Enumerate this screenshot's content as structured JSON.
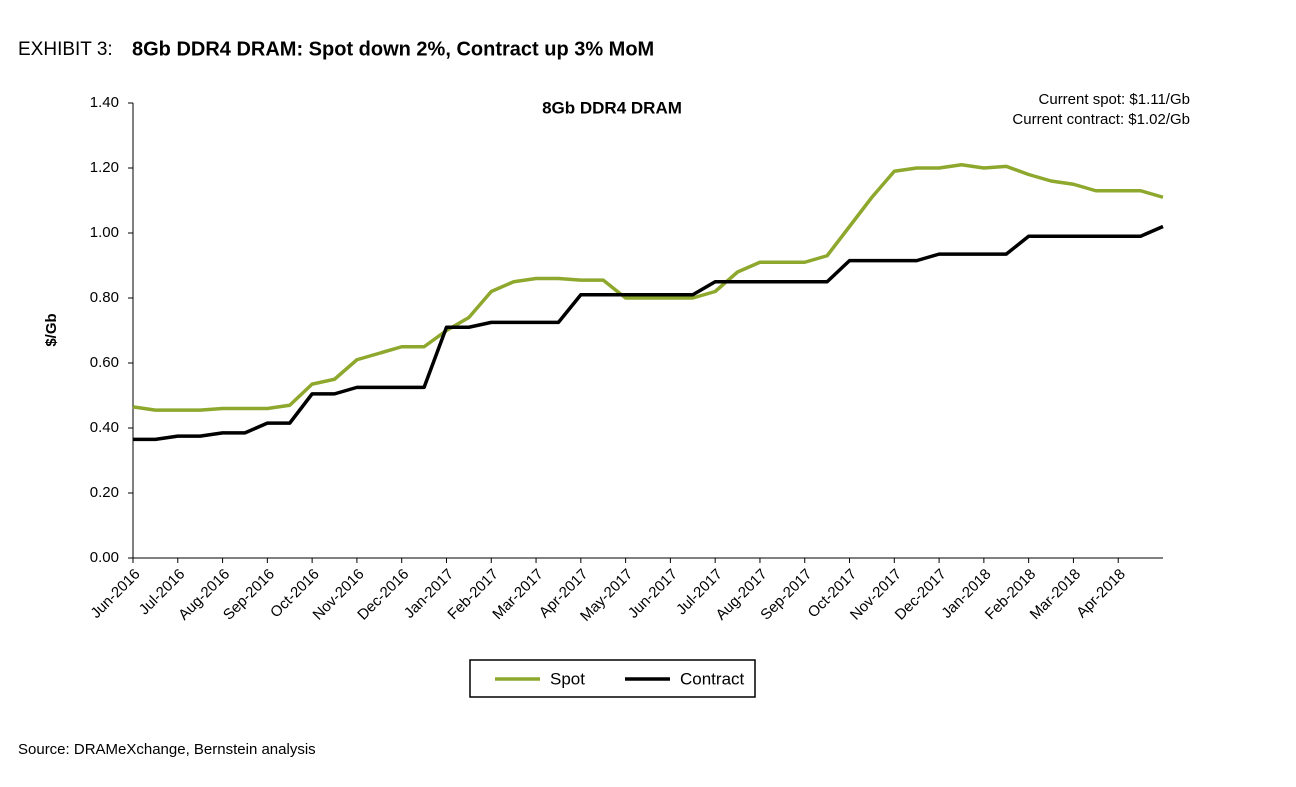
{
  "chart_data": {
    "type": "line",
    "exhibit": "EXHIBIT 3:",
    "headline": "8Gb DDR4 DRAM: Spot down 2%, Contract up 3% MoM",
    "title": "8Gb DDR4  DRAM",
    "annotations": [
      "Current spot: $1.11/Gb",
      "Current contract: $1.02/Gb"
    ],
    "ylabel": "$/Gb",
    "source": "Source: DRAMeXchange, Bernstein analysis",
    "categories": [
      "Jun-2016",
      null,
      "Jul-2016",
      null,
      "Aug-2016",
      null,
      "Sep-2016",
      null,
      "Oct-2016",
      null,
      "Nov-2016",
      null,
      "Dec-2016",
      null,
      "Jan-2017",
      null,
      "Feb-2017",
      null,
      "Mar-2017",
      null,
      "Apr-2017",
      null,
      "May-2017",
      null,
      "Jun-2017",
      null,
      "Jul-2017",
      null,
      "Aug-2017",
      null,
      "Sep-2017",
      null,
      "Oct-2017",
      null,
      "Nov-2017",
      null,
      "Dec-2017",
      null,
      "Jan-2018",
      null,
      "Feb-2018",
      null,
      "Mar-2018",
      null,
      "Apr-2018",
      null,
      null
    ],
    "series": [
      {
        "name": "Spot",
        "color": "#8ea82e",
        "values": [
          0.465,
          0.455,
          0.455,
          0.455,
          0.46,
          0.46,
          0.46,
          0.47,
          0.535,
          0.55,
          0.61,
          0.63,
          0.65,
          0.65,
          0.7,
          0.74,
          0.82,
          0.85,
          0.86,
          0.86,
          0.855,
          0.855,
          0.8,
          0.8,
          0.8,
          0.8,
          0.82,
          0.88,
          0.91,
          0.91,
          0.91,
          0.93,
          1.02,
          1.11,
          1.19,
          1.2,
          1.2,
          1.21,
          1.2,
          1.205,
          1.18,
          1.16,
          1.15,
          1.13,
          1.13,
          1.13,
          1.11
        ]
      },
      {
        "name": "Contract",
        "color": "#000000",
        "values": [
          0.365,
          0.365,
          0.375,
          0.375,
          0.385,
          0.385,
          0.415,
          0.415,
          0.505,
          0.505,
          0.525,
          0.525,
          0.525,
          0.525,
          0.71,
          0.71,
          0.725,
          0.725,
          0.725,
          0.725,
          0.81,
          0.81,
          0.81,
          0.81,
          0.81,
          0.81,
          0.85,
          0.85,
          0.85,
          0.85,
          0.85,
          0.85,
          0.915,
          0.915,
          0.915,
          0.915,
          0.935,
          0.935,
          0.935,
          0.935,
          0.99,
          0.99,
          0.99,
          0.99,
          0.99,
          0.99,
          1.02
        ]
      }
    ],
    "ylim": [
      0,
      1.4
    ],
    "yticks": [
      {
        "value": 0,
        "label": "0.00"
      },
      {
        "value": 0.2,
        "label": "0.20"
      },
      {
        "value": 0.4,
        "label": "0.40"
      },
      {
        "value": 0.6,
        "label": "0.60"
      },
      {
        "value": 0.8,
        "label": "0.80"
      },
      {
        "value": 1,
        "label": "1.00"
      },
      {
        "value": 1.2,
        "label": "1.20"
      },
      {
        "value": 1.4,
        "label": "1.40"
      }
    ],
    "grid": false,
    "legend": "bottom"
  }
}
